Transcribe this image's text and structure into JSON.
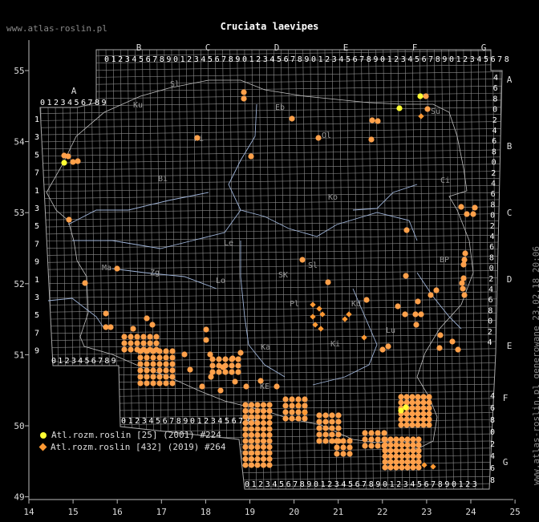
{
  "title": "Cruciata laevipes",
  "site_url": "www.atlas-roslin.pl",
  "credit": "www.atlas-roslin.pl generowane 23.02.18 20:06",
  "colors": {
    "grid": "#8c8c8c",
    "river": "#9fb4d8",
    "record_old": "#ffff33",
    "record_new": "#ff9933",
    "dot": "#ffa04a"
  },
  "x_axis": {
    "labels": [
      "14",
      "15",
      "16",
      "17",
      "18",
      "19",
      "20",
      "21",
      "22",
      "23",
      "24",
      "25"
    ]
  },
  "y_axis": {
    "labels": [
      "55",
      "54",
      "53",
      "52",
      "51",
      "50",
      "49"
    ]
  },
  "column_groups": {
    "top": [
      "B",
      "C",
      "D",
      "E",
      "F",
      "G"
    ],
    "top_left": "A",
    "bottom_right": [
      "F",
      "G"
    ],
    "digits": "0123456789"
  },
  "right_letters": [
    "A",
    "B",
    "C",
    "D",
    "E"
  ],
  "region_codes": [
    "Sl",
    "Ku",
    "Eb",
    "Ol",
    "Su",
    "Pi",
    "Bi",
    "Ci",
    "Ko",
    "Le",
    "Zg",
    "Ma",
    "Lo",
    "SK",
    "Sl",
    "BP",
    "Pl",
    "Kd",
    "Ki",
    "Lu",
    "Ka",
    "KE"
  ],
  "legend": [
    {
      "label": "Atl.rozm.roslin [25] (2001) #224",
      "marker": "yellow-dot"
    },
    {
      "label": "Atl.rozm.roslin [432] (2019) #264",
      "marker": "orange-diamond"
    }
  ]
}
